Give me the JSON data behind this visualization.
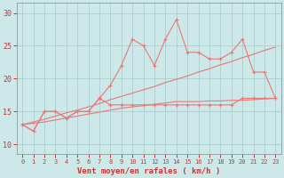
{
  "x_all": [
    0,
    1,
    2,
    3,
    4,
    5,
    6,
    7,
    8,
    9,
    10,
    11,
    12,
    13,
    14,
    15,
    16,
    17,
    18,
    19,
    20,
    21,
    22,
    23
  ],
  "line_upper": [
    13,
    12,
    15,
    15,
    14,
    15,
    15,
    17,
    19,
    22,
    26,
    25,
    22,
    26,
    29,
    24,
    24,
    23,
    23,
    24,
    26,
    21,
    21,
    17
  ],
  "line_lower": [
    13,
    12,
    15,
    15,
    14,
    15,
    15,
    17,
    16,
    16,
    16,
    16,
    16,
    16,
    16,
    16,
    16,
    16,
    16,
    16,
    17,
    17,
    17,
    17
  ],
  "trend_upper": [
    13,
    13.4,
    13.8,
    14.3,
    14.8,
    15.2,
    15.7,
    16.2,
    16.8,
    17.3,
    17.8,
    18.3,
    18.8,
    19.4,
    19.9,
    20.4,
    21.0,
    21.5,
    22.1,
    22.6,
    23.2,
    23.7,
    24.3,
    24.8
  ],
  "trend_lower": [
    13,
    13.2,
    13.4,
    13.7,
    14.0,
    14.3,
    14.6,
    14.9,
    15.2,
    15.5,
    15.7,
    15.9,
    16.1,
    16.3,
    16.5,
    16.5,
    16.5,
    16.6,
    16.6,
    16.7,
    16.7,
    16.8,
    16.9,
    17.0
  ],
  "line_color": "#E87878",
  "bg_color": "#CCE8E8",
  "grid_color": "#AACECE",
  "axis_color": "#CC3333",
  "xlabel": "Vent moyen/en rafales ( km/h )",
  "yticks": [
    10,
    15,
    20,
    25,
    30
  ],
  "ylim": [
    8.5,
    31.5
  ],
  "xlim": [
    -0.5,
    23.5
  ]
}
